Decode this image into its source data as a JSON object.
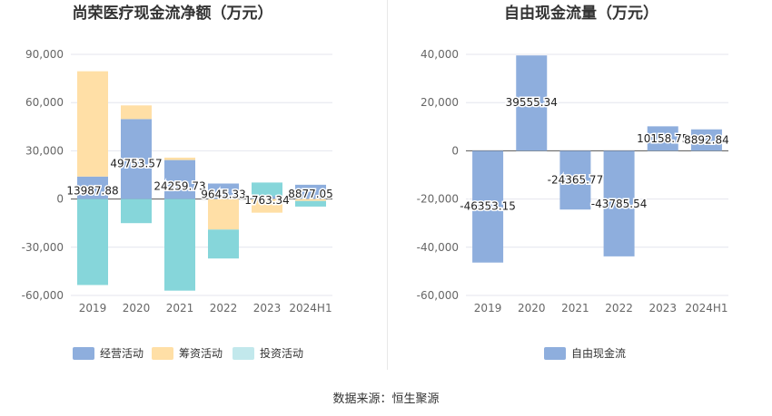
{
  "chart_data": [
    {
      "type": "bar",
      "stacked": true,
      "title": "尚荣医疗现金流净额（万元）",
      "categories": [
        "2019",
        "2020",
        "2021",
        "2022",
        "2023",
        "2024H1"
      ],
      "yticks": [
        "90,000",
        "60,000",
        "30,000",
        "0",
        "-30,000",
        "-60,000"
      ],
      "ylim": [
        -60000,
        90000
      ],
      "series": [
        {
          "name": "经营活动",
          "color": "#8eaedd",
          "values": [
            13987.88,
            49753.57,
            24259.73,
            9645.33,
            1763.34,
            8877.05
          ]
        },
        {
          "name": "筹资活动",
          "color": "#ffdfa6",
          "values": [
            65500,
            8500,
            1500,
            -19000,
            -8500,
            -1200
          ]
        },
        {
          "name": "投资活动",
          "color": "#86d6da",
          "values": [
            -53500,
            -15000,
            -57000,
            -18000,
            8500,
            -3500
          ]
        }
      ],
      "data_labels": [
        "13987.88",
        "49753.57",
        "24259.73",
        "9645.33",
        "1763.34",
        "8877.05"
      ],
      "legend_position": "bottom",
      "grid": true
    },
    {
      "type": "bar",
      "title": "自由现金流量（万元）",
      "categories": [
        "2019",
        "2020",
        "2021",
        "2022",
        "2023",
        "2024H1"
      ],
      "yticks": [
        "40,000",
        "20,000",
        "0",
        "-20,000",
        "-40,000",
        "-60,000"
      ],
      "ylim": [
        -60000,
        40000
      ],
      "series": [
        {
          "name": "自由现金流",
          "color": "#8eaedd",
          "values": [
            -46353.15,
            39555.34,
            -24365.77,
            -43785.54,
            10158.75,
            8892.84
          ]
        }
      ],
      "data_labels": [
        "-46353.15",
        "39555.34",
        "-24365.77",
        "-43785.54",
        "10158.75",
        "8892.84"
      ],
      "legend_position": "bottom",
      "grid": true
    }
  ],
  "footer": {
    "source": "数据来源：恒生聚源"
  }
}
